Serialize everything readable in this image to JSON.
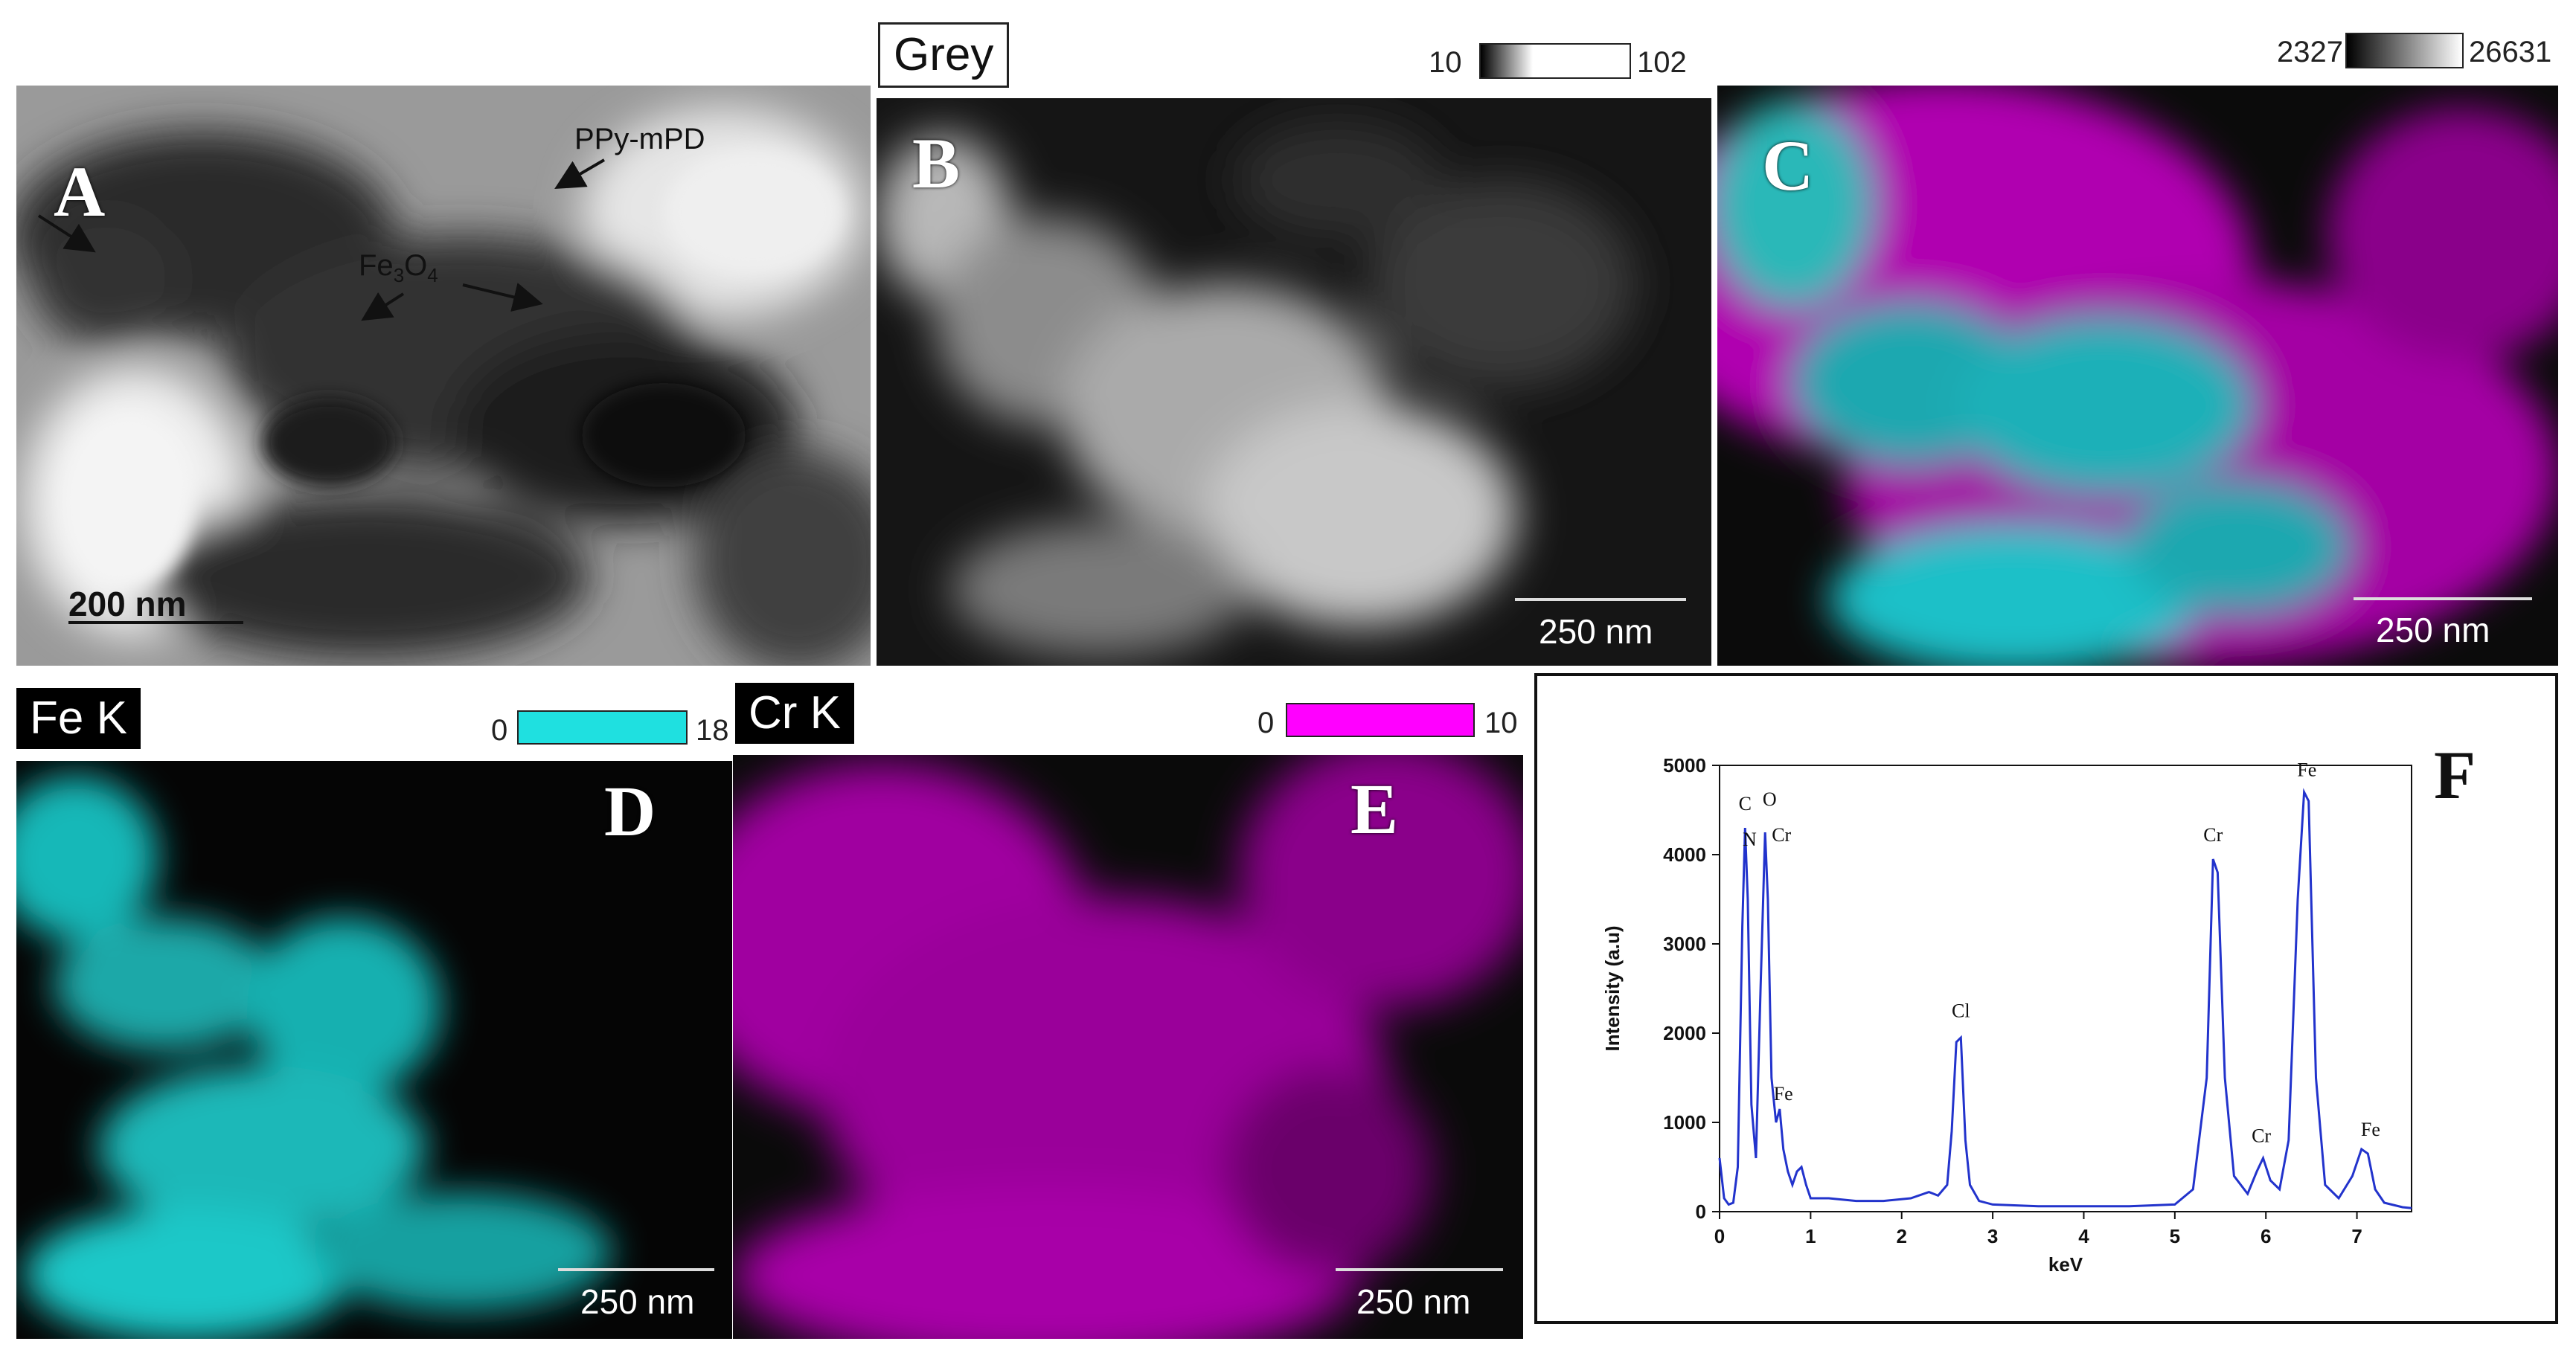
{
  "panelA": {
    "label": "A",
    "annotation_ppy": "PPy-mPD",
    "annotation_fe": "Fe",
    "annotation_fe_sub3": "3",
    "annotation_o": "O",
    "annotation_fe_sub4": "4",
    "scalebar": "200 nm"
  },
  "panelB": {
    "label": "B",
    "tag": "Grey",
    "cbar_min": "10",
    "cbar_max": "102",
    "scalebar": "250 nm"
  },
  "panelC": {
    "label": "C",
    "cbar_min": "2327",
    "cbar_max": "26631",
    "scalebar": "250 nm"
  },
  "panelD": {
    "label": "D",
    "tag": "Fe K",
    "cbar_min": "0",
    "cbar_max": "18",
    "cbar_color": "#1fe0e0",
    "scalebar": "250 nm"
  },
  "panelE": {
    "label": "E",
    "tag": "Cr K",
    "cbar_min": "0",
    "cbar_max": "10",
    "cbar_color": "#ff00ff",
    "scalebar": "250 nm"
  },
  "panelF": {
    "label": "F"
  },
  "chart_data": {
    "type": "line",
    "xlabel": "keV",
    "ylabel": "Intensity (a.u)",
    "xlim": [
      0,
      7.6
    ],
    "ylim": [
      0,
      5000
    ],
    "xticks": [
      "0",
      "1",
      "2",
      "3",
      "4",
      "5",
      "6",
      "7"
    ],
    "yticks": [
      "0",
      "1000",
      "2000",
      "3000",
      "4000",
      "5000"
    ],
    "line_color": "#2233cc",
    "series": [
      {
        "x": [
          0,
          0.05,
          0.1,
          0.15,
          0.2,
          0.25,
          0.28,
          0.31,
          0.35,
          0.4,
          0.45,
          0.5,
          0.53,
          0.57,
          0.62,
          0.66,
          0.7,
          0.75,
          0.8,
          0.85,
          0.9,
          0.95,
          1.0,
          1.2,
          1.5,
          1.8,
          2.1,
          2.3,
          2.4,
          2.5,
          2.55,
          2.6,
          2.65,
          2.7,
          2.75,
          2.85,
          3.0,
          3.5,
          4.0,
          4.5,
          5.0,
          5.2,
          5.35,
          5.42,
          5.47,
          5.55,
          5.65,
          5.8,
          5.9,
          5.97,
          6.05,
          6.15,
          6.25,
          6.35,
          6.42,
          6.47,
          6.55,
          6.65,
          6.8,
          6.95,
          7.05,
          7.12,
          7.2,
          7.3,
          7.5,
          7.6
        ],
        "y": [
          600,
          150,
          80,
          100,
          500,
          3200,
          4300,
          3500,
          1200,
          600,
          2500,
          4250,
          3500,
          1500,
          1000,
          1150,
          700,
          450,
          300,
          450,
          500,
          300,
          150,
          150,
          120,
          120,
          150,
          220,
          180,
          300,
          900,
          1900,
          1950,
          800,
          300,
          120,
          80,
          60,
          60,
          60,
          80,
          250,
          1500,
          3950,
          3800,
          1500,
          400,
          200,
          450,
          600,
          350,
          250,
          800,
          3500,
          4700,
          4600,
          1500,
          300,
          150,
          400,
          700,
          650,
          250,
          100,
          50,
          40
        ]
      }
    ],
    "annotations": [
      {
        "text": "C",
        "x": 0.28,
        "y": 4500
      },
      {
        "text": "N",
        "x": 0.33,
        "y": 4100
      },
      {
        "text": "O",
        "x": 0.55,
        "y": 4550
      },
      {
        "text": "Cr",
        "x": 0.68,
        "y": 4150
      },
      {
        "text": "Fe",
        "x": 0.7,
        "y": 1250
      },
      {
        "text": "Cl",
        "x": 2.65,
        "y": 2180
      },
      {
        "text": "Cr",
        "x": 5.42,
        "y": 4150
      },
      {
        "text": "Cr",
        "x": 5.95,
        "y": 780
      },
      {
        "text": "Fe",
        "x": 6.45,
        "y": 4880
      },
      {
        "text": "Fe",
        "x": 7.15,
        "y": 850
      }
    ]
  }
}
